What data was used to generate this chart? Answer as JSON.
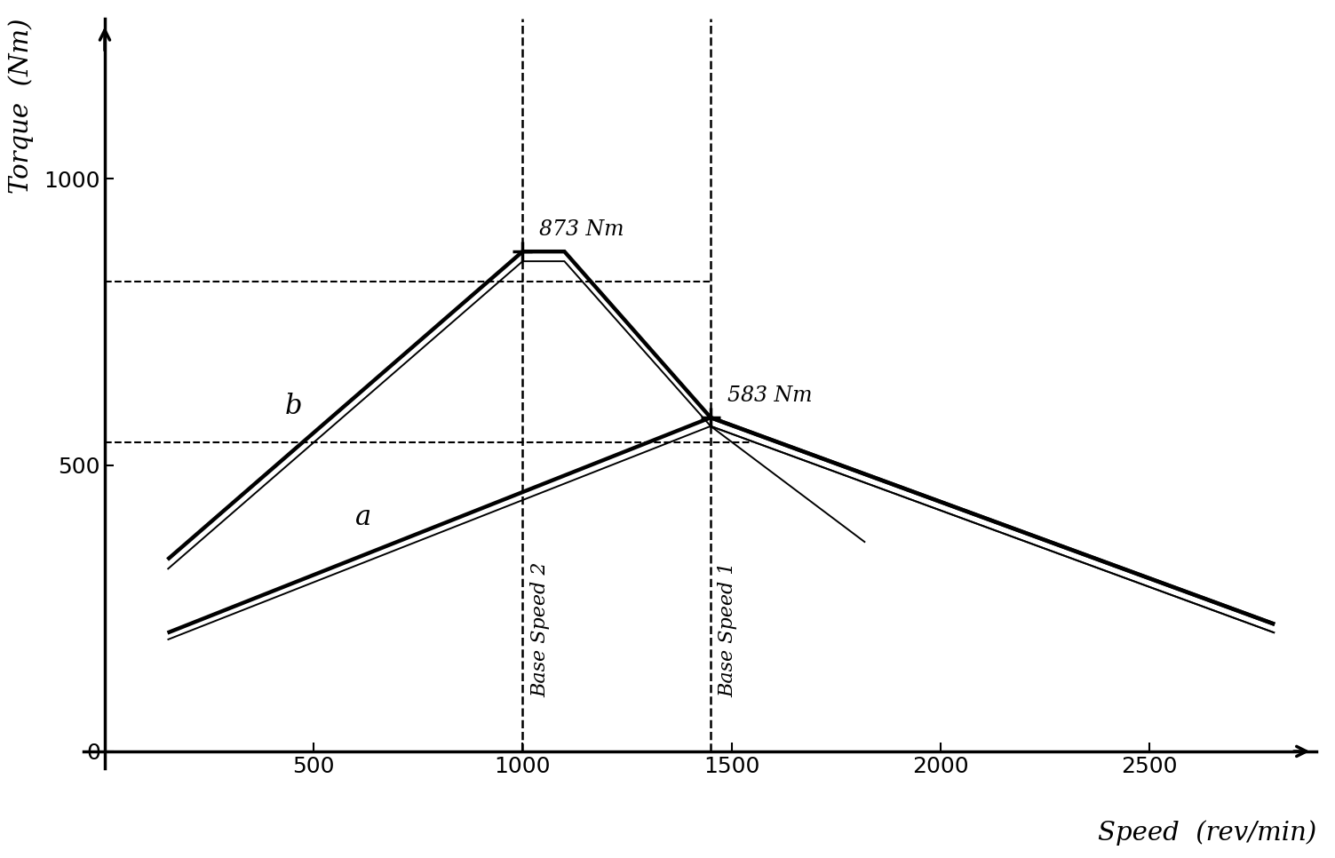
{
  "background_color": "#ffffff",
  "xlim": [
    -50,
    2900
  ],
  "ylim": [
    -30,
    1280
  ],
  "xticks": [
    500,
    1000,
    1500,
    2000,
    2500
  ],
  "yticks": [
    0,
    500,
    1000
  ],
  "xlabel": "Speed  (rev/min)",
  "ylabel": "Torque  (Nm)",
  "base_speed_1": 1450,
  "base_speed_2": 1000,
  "peak_torque_b": 873,
  "flat_end_speed": 1100,
  "rated_torque_1": 583,
  "dashed_line_b": 820,
  "dashed_line_a": 540,
  "start_speed": 150,
  "curve_b_thick": {
    "x": [
      150,
      1000,
      1100,
      1450,
      2800
    ],
    "y": [
      335,
      873,
      873,
      583,
      222
    ]
  },
  "curve_b_thin": {
    "x": [
      150,
      1000,
      1100,
      1450,
      2800
    ],
    "y": [
      318,
      856,
      856,
      568,
      207
    ]
  },
  "curve_a_thick": {
    "x": [
      150,
      1450,
      2800
    ],
    "y": [
      207,
      583,
      222
    ]
  },
  "curve_a_thin": {
    "x": [
      150,
      1450,
      2800
    ],
    "y": [
      195,
      568,
      207
    ]
  },
  "curve_a_short": {
    "x": [
      1450,
      1820
    ],
    "y": [
      568,
      365
    ]
  },
  "lw_thick": 3.2,
  "lw_thin": 1.4,
  "color": "#000000",
  "font_size_annotations": 17,
  "font_size_axis_labels": 21,
  "font_size_base_speed": 16,
  "font_size_curve_labels": 22
}
